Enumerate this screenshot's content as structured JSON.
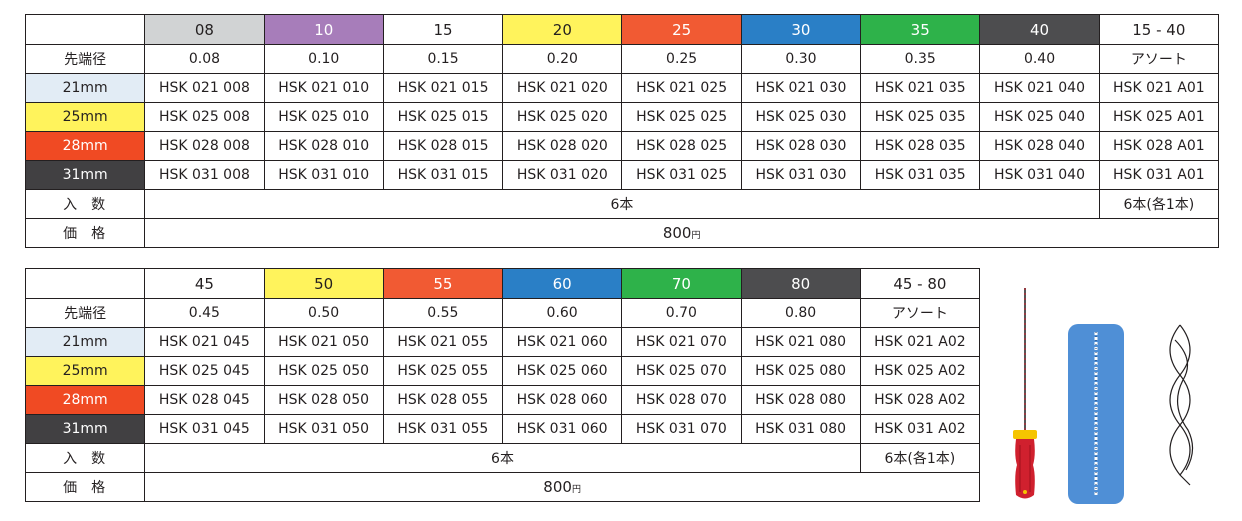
{
  "table1": {
    "size_label": "先端径",
    "qty_label": "入数",
    "price_label": "価格",
    "sizes": [
      {
        "label": "08",
        "diam": "0.08",
        "bg": "#d1d3d4",
        "fg": "#231f20"
      },
      {
        "label": "10",
        "diam": "0.10",
        "bg": "#a77dba",
        "fg": "#ffffff"
      },
      {
        "label": "15",
        "diam": "0.15",
        "bg": "#ffffff",
        "fg": "#231f20"
      },
      {
        "label": "20",
        "diam": "0.20",
        "bg": "#fff35c",
        "fg": "#231f20"
      },
      {
        "label": "25",
        "diam": "0.25",
        "bg": "#f15a33",
        "fg": "#ffffff"
      },
      {
        "label": "30",
        "diam": "0.30",
        "bg": "#2a7fc6",
        "fg": "#ffffff"
      },
      {
        "label": "35",
        "diam": "0.35",
        "bg": "#2eb24a",
        "fg": "#ffffff"
      },
      {
        "label": "40",
        "diam": "0.40",
        "bg": "#4d4d4f",
        "fg": "#ffffff"
      },
      {
        "label": "15 - 40",
        "diam": "アソート",
        "bg": "#ffffff",
        "fg": "#231f20"
      }
    ],
    "lengths": [
      {
        "label": "21mm",
        "bg": "#e2ecf5",
        "fg": "#231f20",
        "codes": [
          "HSK 021 008",
          "HSK 021 010",
          "HSK 021 015",
          "HSK 021 020",
          "HSK 021 025",
          "HSK 021 030",
          "HSK 021 035",
          "HSK 021 040",
          "HSK 021 A01"
        ]
      },
      {
        "label": "25mm",
        "bg": "#fff35c",
        "fg": "#231f20",
        "codes": [
          "HSK 025 008",
          "HSK 025 010",
          "HSK 025 015",
          "HSK 025 020",
          "HSK 025 025",
          "HSK 025 030",
          "HSK 025 035",
          "HSK 025 040",
          "HSK 025 A01"
        ]
      },
      {
        "label": "28mm",
        "bg": "#f04a23",
        "fg": "#ffffff",
        "codes": [
          "HSK 028 008",
          "HSK 028 010",
          "HSK 028 015",
          "HSK 028 020",
          "HSK 028 025",
          "HSK 028 030",
          "HSK 028 035",
          "HSK 028 040",
          "HSK 028 A01"
        ]
      },
      {
        "label": "31mm",
        "bg": "#414042",
        "fg": "#ffffff",
        "codes": [
          "HSK 031 008",
          "HSK 031 010",
          "HSK 031 015",
          "HSK 031 020",
          "HSK 031 025",
          "HSK 031 030",
          "HSK 031 035",
          "HSK 031 040",
          "HSK 031 A01"
        ]
      }
    ],
    "qty_main": "6本",
    "qty_assort": "6本(各1本)",
    "price": "800",
    "price_unit": "円"
  },
  "table2": {
    "size_label": "先端径",
    "qty_label": "入数",
    "price_label": "価格",
    "sizes": [
      {
        "label": "45",
        "diam": "0.45",
        "bg": "#ffffff",
        "fg": "#231f20"
      },
      {
        "label": "50",
        "diam": "0.50",
        "bg": "#fff35c",
        "fg": "#231f20"
      },
      {
        "label": "55",
        "diam": "0.55",
        "bg": "#f15a33",
        "fg": "#ffffff"
      },
      {
        "label": "60",
        "diam": "0.60",
        "bg": "#2a7fc6",
        "fg": "#ffffff"
      },
      {
        "label": "70",
        "diam": "0.70",
        "bg": "#2eb24a",
        "fg": "#ffffff"
      },
      {
        "label": "80",
        "diam": "0.80",
        "bg": "#4d4d4f",
        "fg": "#ffffff"
      },
      {
        "label": "45 - 80",
        "diam": "アソート",
        "bg": "#ffffff",
        "fg": "#231f20"
      }
    ],
    "lengths": [
      {
        "label": "21mm",
        "bg": "#e2ecf5",
        "fg": "#231f20",
        "codes": [
          "HSK 021 045",
          "HSK 021 050",
          "HSK 021 055",
          "HSK 021 060",
          "HSK 021 070",
          "HSK 021 080",
          "HSK 021 A02"
        ]
      },
      {
        "label": "25mm",
        "bg": "#fff35c",
        "fg": "#231f20",
        "codes": [
          "HSK 025 045",
          "HSK 025 050",
          "HSK 025 055",
          "HSK 025 060",
          "HSK 025 070",
          "HSK 025 080",
          "HSK 025 A02"
        ]
      },
      {
        "label": "28mm",
        "bg": "#f04a23",
        "fg": "#ffffff",
        "codes": [
          "HSK 028 045",
          "HSK 028 050",
          "HSK 028 055",
          "HSK 028 060",
          "HSK 028 070",
          "HSK 028 080",
          "HSK 028 A02"
        ]
      },
      {
        "label": "31mm",
        "bg": "#414042",
        "fg": "#ffffff",
        "codes": [
          "HSK 031 045",
          "HSK 031 050",
          "HSK 031 055",
          "HSK 031 060",
          "HSK 031 070",
          "HSK 031 080",
          "HSK 031 A02"
        ]
      }
    ],
    "qty_main": "6本",
    "qty_assort": "6本(各1本)",
    "price": "800",
    "price_unit": "円"
  },
  "illustration": {
    "handle_color": "#d0202e",
    "ring_color": "#f5c400",
    "panel_color": "#4f8fd6"
  }
}
